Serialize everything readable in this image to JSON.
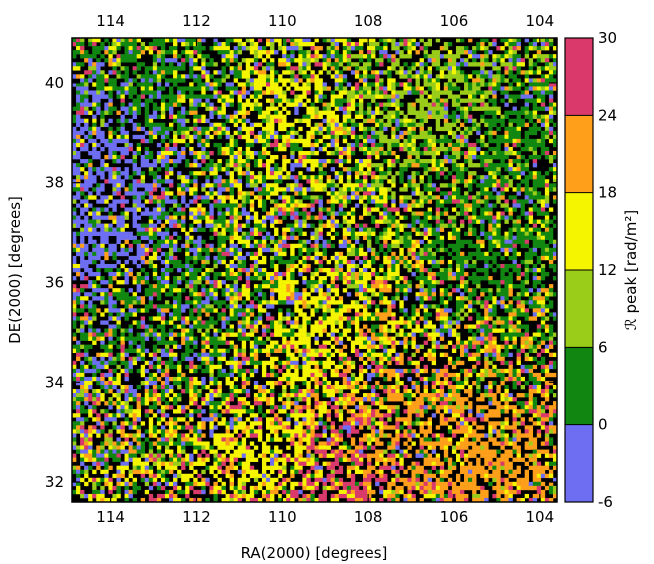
{
  "chart_data": {
    "type": "heatmap",
    "title": "",
    "xlabel": "RA(2000) [degrees]",
    "ylabel": "DE(2000) [degrees]",
    "x_range": [
      114.9,
      103.6
    ],
    "y_range": [
      31.6,
      40.9
    ],
    "x_ticks": [
      114,
      112,
      110,
      108,
      106,
      104
    ],
    "y_ticks": [
      32,
      34,
      36,
      38,
      40
    ],
    "x_axis_reversed": true,
    "top_axis_ticks": [
      114,
      112,
      110,
      108,
      106,
      104
    ],
    "colorbar": {
      "label": "ℛ peak [rad/m²]",
      "range": [
        -6,
        30
      ],
      "ticks": [
        -6,
        0,
        6,
        12,
        18,
        24,
        30
      ],
      "bins": [
        {
          "min": -6,
          "max": 0,
          "color": "#6e6ef2"
        },
        {
          "min": 0,
          "max": 6,
          "color": "#118711"
        },
        {
          "min": 6,
          "max": 12,
          "color": "#9acd1a"
        },
        {
          "min": 12,
          "max": 18,
          "color": "#f5f500"
        },
        {
          "min": 18,
          "max": 24,
          "color": "#ff9f1a"
        },
        {
          "min": 24,
          "max": 30,
          "color": "#d93a6b"
        }
      ],
      "masked_color": "#000000"
    },
    "regions": [
      {
        "ra": 114.5,
        "dec": 38.5,
        "dominant_bin": "-6 to 0"
      },
      {
        "ra": 114.3,
        "dec": 36.8,
        "dominant_bin": "-6 to 0"
      },
      {
        "ra": 113.0,
        "dec": 40.0,
        "dominant_bin": "0 to 6"
      },
      {
        "ra": 110.0,
        "dec": 39.3,
        "dominant_bin": "12 to 18"
      },
      {
        "ra": 109.0,
        "dec": 35.0,
        "dominant_bin": "12 to 18"
      },
      {
        "ra": 110.5,
        "dec": 32.6,
        "dominant_bin": "12 to 18"
      },
      {
        "ra": 107.5,
        "dec": 32.8,
        "dominant_bin": "18 to 24"
      },
      {
        "ra": 105.0,
        "dec": 32.5,
        "dominant_bin": "18 to 24"
      },
      {
        "ra": 108.5,
        "dec": 32.1,
        "dominant_bin": "24 to 30"
      },
      {
        "ra": 106.5,
        "dec": 39.5,
        "dominant_bin": "6 to 12"
      },
      {
        "ra": 105.0,
        "dec": 36.5,
        "dominant_bin": "0 to 6"
      },
      {
        "ra": 104.5,
        "dec": 39.0,
        "dominant_bin": "0 to 6"
      },
      {
        "ra": 112.5,
        "dec": 35.5,
        "dominant_bin": "0 to 6"
      }
    ]
  }
}
